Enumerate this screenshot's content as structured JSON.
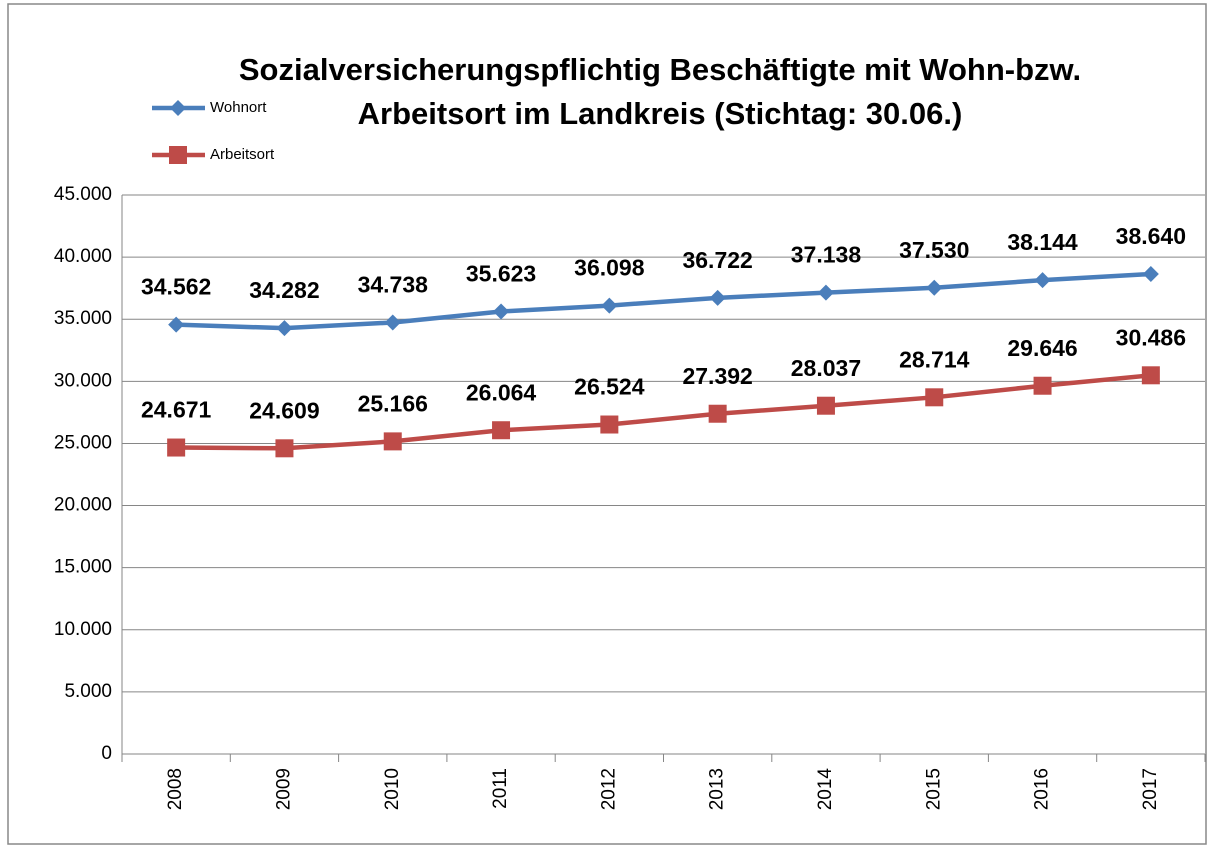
{
  "chart_data": {
    "type": "line",
    "title": [
      "Sozialversicherungspflichtig Beschäftigte mit Wohn-bzw.",
      "Arbeitsort  im Landkreis (Stichtag: 30.06.)"
    ],
    "categories": [
      "2008",
      "2009",
      "2010",
      "2011",
      "2012",
      "2013",
      "2014",
      "2015",
      "2016",
      "2017"
    ],
    "series": [
      {
        "name": "Wohnort",
        "color": "#4a7ebb",
        "marker": "diamond",
        "values": [
          34562,
          34282,
          34738,
          35623,
          36098,
          36722,
          37138,
          37530,
          38144,
          38640
        ],
        "value_labels": [
          "34.562",
          "34.282",
          "34.738",
          "35.623",
          "36.098",
          "36.722",
          "37.138",
          "37.530",
          "38.144",
          "38.640"
        ]
      },
      {
        "name": "Arbeitsort",
        "color": "#be4b48",
        "marker": "square",
        "values": [
          24671,
          24609,
          25166,
          26064,
          26524,
          27392,
          28037,
          28714,
          29646,
          30486
        ],
        "value_labels": [
          "24.671",
          "24.609",
          "25.166",
          "26.064",
          "26.524",
          "27.392",
          "28.037",
          "28.714",
          "29.646",
          "30.486"
        ]
      }
    ],
    "ylim": [
      0,
      45000
    ],
    "yticks": [
      {
        "value": 0,
        "label": "0"
      },
      {
        "value": 5000,
        "label": "5.000"
      },
      {
        "value": 10000,
        "label": "10.000"
      },
      {
        "value": 15000,
        "label": "15.000"
      },
      {
        "value": 20000,
        "label": "20.000"
      },
      {
        "value": 25000,
        "label": "25.000"
      },
      {
        "value": 30000,
        "label": "30.000"
      },
      {
        "value": 35000,
        "label": "35.000"
      },
      {
        "value": 40000,
        "label": "40.000"
      },
      {
        "value": 45000,
        "label": "45.000"
      }
    ],
    "grid": true,
    "legend": "top-left"
  }
}
